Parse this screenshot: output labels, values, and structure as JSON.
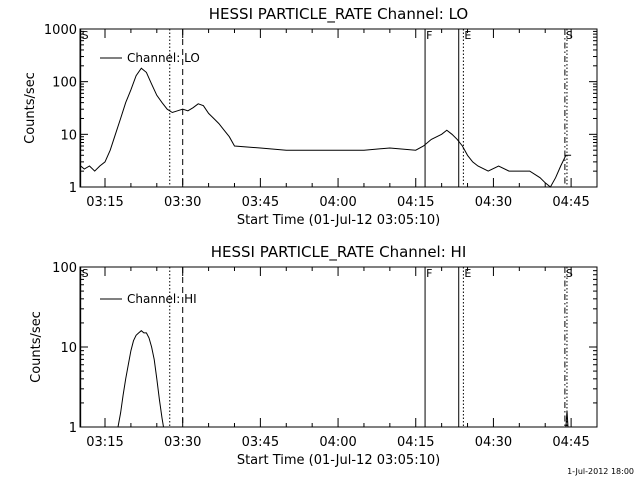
{
  "footer_timestamp": "1-Jul-2012 18:00",
  "chart_data": [
    {
      "type": "line",
      "title": "HESSI PARTICLE_RATE Channel: LO",
      "xlabel": "Start Time (01-Jul-12 03:05:10)",
      "ylabel": "Counts/sec",
      "yscale": "log",
      "ylim": [
        1,
        1000
      ],
      "xlim_min": [
        5.17,
        105
      ],
      "yticks": [
        "1",
        "10",
        "100",
        "1000"
      ],
      "xticks": [
        "03:15",
        "03:30",
        "03:45",
        "04:00",
        "04:15",
        "04:30",
        "04:45"
      ],
      "legend": {
        "label": "Channel: LO",
        "position": "top-left"
      },
      "markers": [
        {
          "label": "S",
          "x_min": 5.3,
          "style": "solid"
        },
        {
          "x_min": 22.5,
          "style": "dotted"
        },
        {
          "x_min": 25.0,
          "style": "dashed"
        },
        {
          "label": "F",
          "x_min": 71.8,
          "style": "solid"
        },
        {
          "x_min": 78.3,
          "style": "solid"
        },
        {
          "label": "E",
          "x_min": 79.2,
          "style": "dotted"
        },
        {
          "label": "S",
          "x_min": 98.8,
          "style": "dashdot"
        },
        {
          "x_min": 99.2,
          "style": "dotted"
        }
      ],
      "series": [
        {
          "x_min": [
            5.3,
            6,
            7,
            8,
            9,
            10,
            11,
            12,
            13,
            14,
            15,
            16,
            17,
            18,
            19,
            20,
            21,
            22,
            23,
            24,
            25,
            26,
            27,
            28,
            29,
            30,
            31,
            32,
            33,
            34,
            35,
            40,
            45,
            50,
            55,
            60,
            65,
            70,
            71.5,
            73,
            75,
            76,
            77,
            78,
            79,
            80,
            81,
            82,
            84,
            86,
            88,
            90,
            92,
            94,
            95,
            96,
            97,
            98,
            99,
            100
          ],
          "y": [
            2.5,
            2.2,
            2.5,
            2.0,
            2.5,
            3.0,
            5.0,
            10,
            20,
            40,
            70,
            130,
            180,
            150,
            90,
            55,
            40,
            30,
            26,
            28,
            30,
            28,
            32,
            38,
            35,
            25,
            20,
            16,
            12,
            9,
            6,
            5.5,
            5,
            5,
            5,
            5,
            5.5,
            5,
            6,
            8,
            10,
            12,
            10,
            8,
            6,
            4,
            3,
            2.5,
            2,
            2.5,
            2,
            2,
            2,
            1.5,
            1.2,
            1.0,
            1.5,
            2.5,
            4.0,
            4.0
          ]
        }
      ]
    },
    {
      "type": "line",
      "title": "HESSI PARTICLE_RATE Channel: HI",
      "xlabel": "Start Time (01-Jul-12 03:05:10)",
      "ylabel": "Counts/sec",
      "yscale": "log",
      "ylim": [
        1,
        100
      ],
      "xlim_min": [
        5.17,
        105
      ],
      "yticks": [
        "1",
        "10",
        "100"
      ],
      "xticks": [
        "03:15",
        "03:30",
        "03:45",
        "04:00",
        "04:15",
        "04:30",
        "04:45"
      ],
      "legend": {
        "label": "Channel: HI",
        "position": "top-left"
      },
      "markers": [
        {
          "label": "S",
          "x_min": 5.3,
          "style": "solid"
        },
        {
          "x_min": 22.5,
          "style": "dotted"
        },
        {
          "x_min": 25.0,
          "style": "dashed"
        },
        {
          "label": "F",
          "x_min": 71.8,
          "style": "solid"
        },
        {
          "x_min": 78.3,
          "style": "solid"
        },
        {
          "label": "E",
          "x_min": 79.2,
          "style": "dotted"
        },
        {
          "label": "S",
          "x_min": 98.8,
          "style": "dashdot"
        },
        {
          "x_min": 99.2,
          "style": "dotted"
        }
      ],
      "series": [
        {
          "x_min": [
            12.5,
            13,
            13.5,
            14,
            14.5,
            15,
            15.5,
            16,
            16.5,
            17,
            17.5,
            18,
            18.5,
            19,
            19.5,
            20,
            20.5,
            21,
            21.3
          ],
          "y": [
            1.0,
            1.5,
            2.5,
            4.0,
            6.0,
            9.0,
            12,
            14,
            15,
            16,
            15,
            15,
            13,
            10,
            7,
            4,
            2.2,
            1.3,
            1.0
          ]
        },
        {
          "x_min": [
            99.0,
            99.2,
            99.4
          ],
          "y": [
            1.0,
            1.6,
            1.0
          ]
        }
      ]
    }
  ]
}
